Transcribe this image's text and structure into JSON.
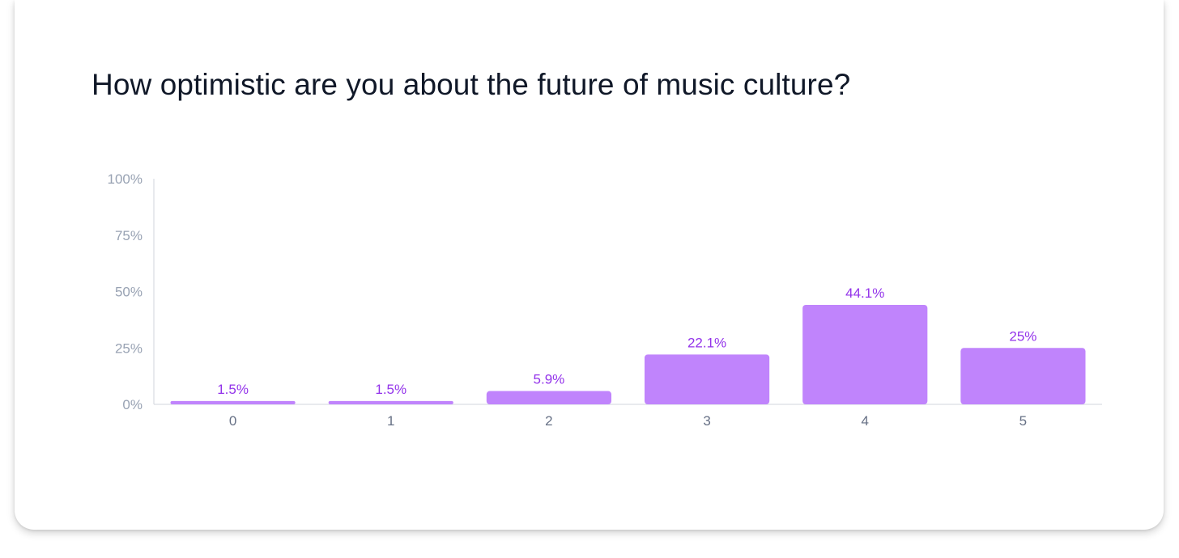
{
  "question": {
    "title": "How optimistic are you about the future of music culture?"
  },
  "colors": {
    "bar": "#c084fc",
    "value_label": "#9333ea",
    "axis": "#d0d5dd",
    "tick_label": "#98a2b3",
    "category_label": "#667085",
    "title": "#101828"
  },
  "chart_data": {
    "type": "bar",
    "title": "How optimistic are you about the future of music culture?",
    "categories": [
      "0",
      "1",
      "2",
      "3",
      "4",
      "5"
    ],
    "values": [
      1.5,
      1.5,
      5.9,
      22.1,
      44.1,
      25
    ],
    "value_labels": [
      "1.5%",
      "1.5%",
      "5.9%",
      "22.1%",
      "44.1%",
      "25%"
    ],
    "ylim": [
      0,
      100
    ],
    "yticks": [
      0,
      25,
      50,
      75,
      100
    ],
    "ytick_labels": [
      "0%",
      "25%",
      "50%",
      "75%",
      "100%"
    ],
    "xlabel": "",
    "ylabel": "",
    "grid": false,
    "legend": "none"
  }
}
